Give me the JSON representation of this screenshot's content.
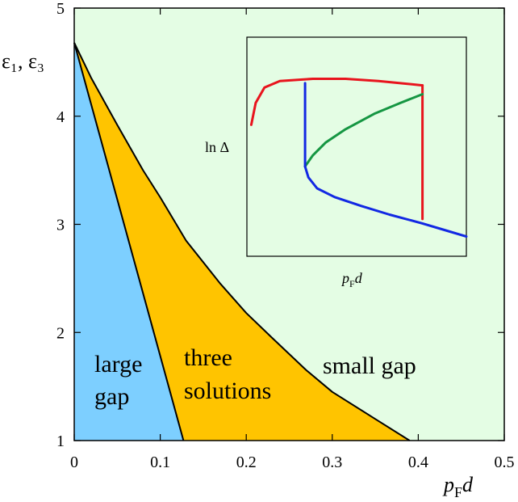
{
  "chart_data": [
    {
      "type": "area",
      "xlabel_main": "p",
      "xlabel_sub": "F",
      "xlabel_tail": "d",
      "ylabel": "ε₁, ε₃",
      "xlim": [
        0,
        0.5
      ],
      "ylim": [
        1,
        5
      ],
      "x_ticks": [
        0,
        0.1,
        0.2,
        0.3,
        0.4,
        0.5
      ],
      "x_tick_labels": [
        "0",
        "0.1",
        "0.2",
        "0.3",
        "0.4",
        "0.5"
      ],
      "y_ticks": [
        1,
        2,
        3,
        4,
        5
      ],
      "y_tick_labels": [
        "1",
        "2",
        "3",
        "4",
        "5"
      ],
      "grid": false,
      "colors": {
        "large_gap": "#7dcfff",
        "three_solutions": "#ffc400",
        "small_gap": "#e4fde4",
        "boundary": "#000000"
      },
      "boundaries": [
        {
          "role": "left",
          "x": [
            0,
            0.127
          ],
          "y": [
            4.68,
            1.0
          ]
        },
        {
          "role": "right",
          "x": [
            0,
            0.02,
            0.05,
            0.08,
            0.1,
            0.13,
            0.17,
            0.2,
            0.23,
            0.27,
            0.3,
            0.35,
            0.39
          ],
          "y": [
            4.68,
            4.35,
            3.92,
            3.5,
            3.25,
            2.85,
            2.45,
            2.18,
            1.95,
            1.65,
            1.45,
            1.2,
            1.0
          ]
        }
      ],
      "region_labels": [
        {
          "id": "large",
          "lines": [
            "large",
            "gap"
          ]
        },
        {
          "id": "three",
          "lines": [
            "three",
            "solutions"
          ]
        },
        {
          "id": "small",
          "lines": [
            "small gap"
          ]
        }
      ]
    },
    {
      "type": "line",
      "xlabel_main": "p",
      "xlabel_sub": "F",
      "xlabel_tail": "d",
      "ylabel": "ln Δ",
      "series_colors": {
        "red": "#e8141d",
        "green": "#159642",
        "blue": "#1228e3"
      },
      "series": [
        {
          "color": "red",
          "x": [
            0.02,
            0.04,
            0.08,
            0.15,
            0.3,
            0.45,
            0.6,
            0.8
          ],
          "y": [
            0.6,
            0.7,
            0.77,
            0.8,
            0.81,
            0.81,
            0.8,
            0.78
          ]
        },
        {
          "color": "red",
          "x": [
            0.8,
            0.8
          ],
          "y": [
            0.78,
            0.17
          ]
        },
        {
          "color": "green",
          "x": [
            0.265,
            0.3,
            0.36,
            0.45,
            0.58,
            0.7,
            0.8
          ],
          "y": [
            0.41,
            0.46,
            0.52,
            0.58,
            0.65,
            0.7,
            0.74
          ]
        },
        {
          "color": "blue",
          "x": [
            0.265,
            0.265
          ],
          "y": [
            0.79,
            0.41
          ]
        },
        {
          "color": "blue",
          "x": [
            0.265,
            0.28,
            0.32,
            0.4,
            0.52,
            0.65,
            0.8,
            0.9,
            1.0
          ],
          "y": [
            0.41,
            0.36,
            0.31,
            0.27,
            0.23,
            0.19,
            0.15,
            0.12,
            0.09
          ]
        }
      ]
    }
  ]
}
